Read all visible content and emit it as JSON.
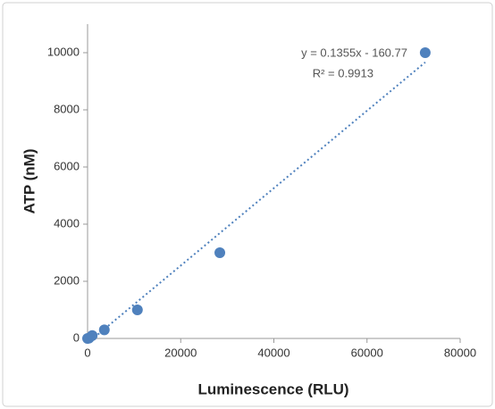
{
  "chart_data": {
    "type": "scatter",
    "x_label": "Luminescence (RLU)",
    "y_label": "ATP (nM)",
    "x": [
      0,
      300,
      1000,
      3600,
      10700,
      28400,
      72500
    ],
    "values": [
      0,
      10,
      100,
      300,
      1000,
      3000,
      10000
    ],
    "color": "#4f81bd",
    "xlim": [
      0,
      80000
    ],
    "xticks": [
      0,
      20000,
      40000,
      60000,
      80000
    ],
    "ylim": [
      0,
      11000
    ],
    "yticks": [
      0,
      2000,
      4000,
      6000,
      8000,
      10000
    ],
    "grid": false,
    "trendline": {
      "slope": 0.1355,
      "intercept": -160.77,
      "equation": "y = 0.1355x - 160.77",
      "r_squared": 0.9913,
      "r_squared_label": "R² = 0.9913"
    }
  }
}
